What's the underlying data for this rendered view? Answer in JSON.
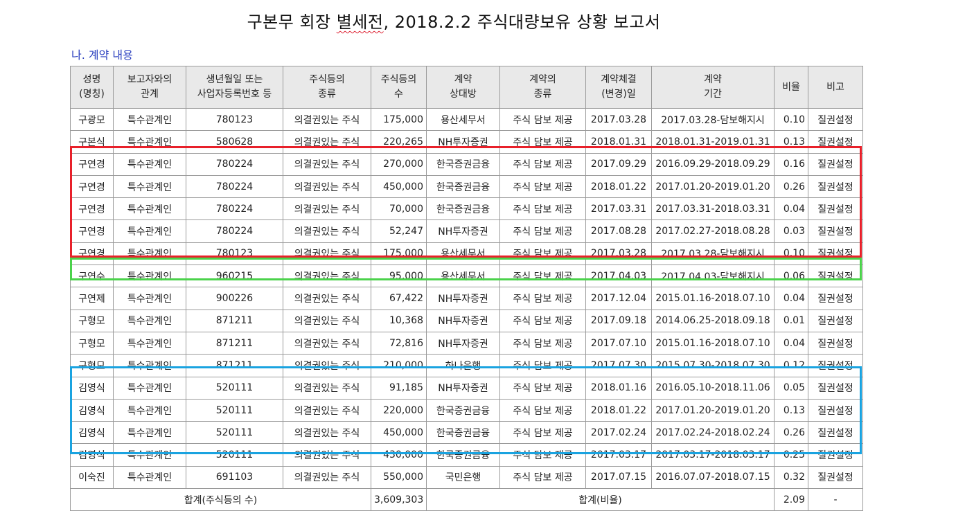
{
  "doc": {
    "title_pre": "구본무 회장 ",
    "title_squig": "별세전",
    "title_post": ", 2018.2.2  주식대량보유 상황 보고서",
    "subtitle": "나. 계약 내용"
  },
  "table": {
    "headers": [
      [
        "성명",
        "(명칭)"
      ],
      [
        "보고자와의",
        "관계"
      ],
      [
        "생년월일 또는",
        "사업자등록번호 등"
      ],
      [
        "주식등의",
        "종류"
      ],
      [
        "주식등의",
        "수"
      ],
      [
        "계약",
        "상대방"
      ],
      [
        "계약의",
        "종류"
      ],
      [
        "계약체결",
        "(변경)일"
      ],
      [
        "계약",
        "기간"
      ],
      [
        "비율",
        ""
      ],
      [
        "비고",
        ""
      ]
    ],
    "rows": [
      [
        "구광모",
        "특수관계인",
        "780123",
        "의결권있는 주식",
        "175,000",
        "용산세무서",
        "주식 담보 제공",
        "2017.03.28",
        "2017.03.28-담보해지시",
        "0.10",
        "질권설정"
      ],
      [
        "구본식",
        "특수관계인",
        "580628",
        "의결권있는 주식",
        "220,265",
        "NH투자증권",
        "주식 담보 제공",
        "2018.01.31",
        "2018.01.31-2019.01.31",
        "0.13",
        "질권설정"
      ],
      [
        "구연경",
        "특수관계인",
        "780224",
        "의결권있는 주식",
        "270,000",
        "한국증권금융",
        "주식 담보 제공",
        "2017.09.29",
        "2016.09.29-2018.09.29",
        "0.16",
        "질권설정"
      ],
      [
        "구연경",
        "특수관계인",
        "780224",
        "의결권있는 주식",
        "450,000",
        "한국증권금융",
        "주식 담보 제공",
        "2018.01.22",
        "2017.01.20-2019.01.20",
        "0.26",
        "질권설정"
      ],
      [
        "구연경",
        "특수관계인",
        "780224",
        "의결권있는 주식",
        "70,000",
        "한국증권금융",
        "주식 담보 제공",
        "2017.03.31",
        "2017.03.31-2018.03.31",
        "0.04",
        "질권설정"
      ],
      [
        "구연경",
        "특수관계인",
        "780224",
        "의결권있는 주식",
        "52,247",
        "NH투자증권",
        "주식 담보 제공",
        "2017.08.28",
        "2017.02.27-2018.08.28",
        "0.03",
        "질권설정"
      ],
      [
        "구연경",
        "특수관계인",
        "780123",
        "의결권있는 주식",
        "175,000",
        "용산세무서",
        "주식 담보 제공",
        "2017.03.28",
        "2017.03.28-담보해지시",
        "0.10",
        "질권설정"
      ],
      [
        "구연수",
        "특수관계인",
        "960215",
        "의결권있는 주식",
        "95,000",
        "용산세무서",
        "주식 담보 제공",
        "2017.04.03",
        "2017.04.03-담보해지시",
        "0.06",
        "질권설정"
      ],
      [
        "구연제",
        "특수관계인",
        "900226",
        "의결권있는 주식",
        "67,422",
        "NH투자증권",
        "주식 담보 제공",
        "2017.12.04",
        "2015.01.16-2018.07.10",
        "0.04",
        "질권설정"
      ],
      [
        "구형모",
        "특수관계인",
        "871211",
        "의결권있는 주식",
        "10,368",
        "NH투자증권",
        "주식 담보 제공",
        "2017.09.18",
        "2014.06.25-2018.09.18",
        "0.01",
        "질권설정"
      ],
      [
        "구형모",
        "특수관계인",
        "871211",
        "의결권있는 주식",
        "72,816",
        "NH투자증권",
        "주식 담보 제공",
        "2017.07.10",
        "2015.01.16-2018.07.10",
        "0.04",
        "질권설정"
      ],
      [
        "구형모",
        "특수관계인",
        "871211",
        "의결권있는 주식",
        "210,000",
        "하나은행",
        "주식 담보 제공",
        "2017.07.30",
        "2015.07.30-2018.07.30",
        "0.12",
        "질권설정"
      ],
      [
        "김영식",
        "특수관계인",
        "520111",
        "의결권있는 주식",
        "91,185",
        "NH투자증권",
        "주식 담보 제공",
        "2018.01.16",
        "2016.05.10-2018.11.06",
        "0.05",
        "질권설정"
      ],
      [
        "김영식",
        "특수관계인",
        "520111",
        "의결권있는 주식",
        "220,000",
        "한국증권금융",
        "주식 담보 제공",
        "2018.01.22",
        "2017.01.20-2019.01.20",
        "0.13",
        "질권설정"
      ],
      [
        "김영식",
        "특수관계인",
        "520111",
        "의결권있는 주식",
        "450,000",
        "한국증권금융",
        "주식 담보 제공",
        "2017.02.24",
        "2017.02.24-2018.02.24",
        "0.26",
        "질권설정"
      ],
      [
        "김영식",
        "특수관계인",
        "520111",
        "의결권있는 주식",
        "430,000",
        "한국증권금융",
        "주식 담보 제공",
        "2017.03.17",
        "2017.03.17-2018.03.17",
        "0.25",
        "질권설정"
      ],
      [
        "이숙진",
        "특수관계인",
        "691103",
        "의결권있는 주식",
        "550,000",
        "국민은행",
        "주식 담보 제공",
        "2017.07.15",
        "2016.07.07-2018.07.15",
        "0.32",
        "질권설정"
      ]
    ],
    "total": {
      "shares_label": "합계(주식등의 수)",
      "shares_value": "3,609,303",
      "ratio_label": "합계(비율)",
      "ratio_value": "2.09",
      "note": "-"
    }
  },
  "highlights": {
    "red_color": "#e8202a",
    "green_color": "#4bd24b",
    "blue_color": "#1aa3e0"
  }
}
